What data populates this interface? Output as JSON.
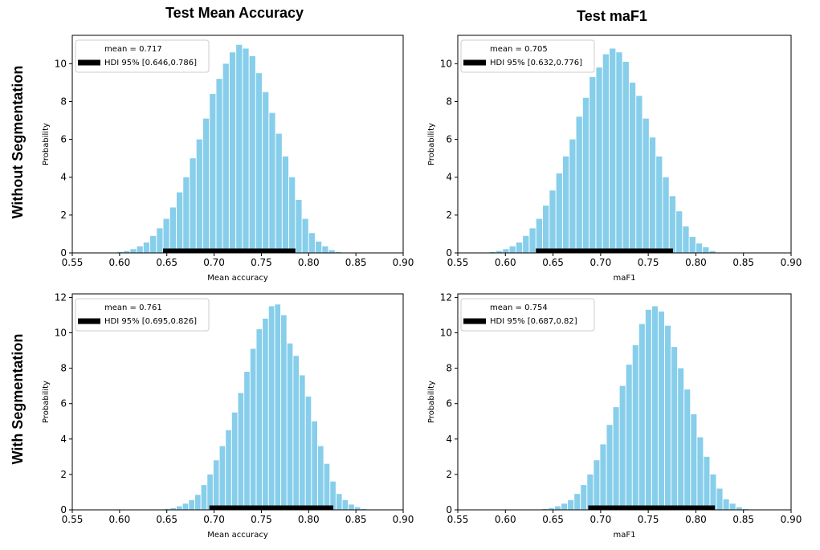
{
  "column_titles": [
    "Test Mean Accuracy",
    "Test maF1"
  ],
  "row_titles": [
    "Without Segmentation",
    "With Segmentation"
  ],
  "colors": {
    "bar": "#87ceeb",
    "hdi": "#000000",
    "axis": "#000000"
  },
  "chart_data": [
    {
      "type": "bar",
      "panel": "without-segmentation / test-mean-accuracy",
      "xlabel": "Mean accuracy",
      "ylabel": "Probability",
      "xlim": [
        0.55,
        0.9
      ],
      "ylim": [
        0,
        11.5
      ],
      "xticks": [
        "0.55",
        "0.60",
        "0.65",
        "0.70",
        "0.75",
        "0.80",
        "0.85",
        "0.90"
      ],
      "yticks": [
        "0",
        "2",
        "4",
        "6",
        "8",
        "10"
      ],
      "legend": {
        "placement": "top-left",
        "mean_label": "mean = 0.717",
        "hdi_label": "HDI 95% [0.646,0.786]"
      },
      "mean": 0.717,
      "hdi": [
        0.646,
        0.786
      ],
      "bin_width": 0.007,
      "bins": [
        0.597,
        0.604,
        0.611,
        0.618,
        0.625,
        0.632,
        0.639,
        0.646,
        0.653,
        0.66,
        0.667,
        0.674,
        0.681,
        0.688,
        0.695,
        0.702,
        0.709,
        0.716,
        0.723,
        0.73,
        0.737,
        0.744,
        0.751,
        0.758,
        0.765,
        0.772,
        0.779,
        0.786,
        0.793,
        0.8,
        0.807,
        0.814,
        0.821,
        0.828
      ],
      "values": [
        0.05,
        0.1,
        0.2,
        0.35,
        0.55,
        0.9,
        1.3,
        1.8,
        2.4,
        3.2,
        4.0,
        5.0,
        6.0,
        7.1,
        8.4,
        9.2,
        10.0,
        10.6,
        11.0,
        10.8,
        10.4,
        9.5,
        8.5,
        7.4,
        6.3,
        5.1,
        4.0,
        2.8,
        1.8,
        1.05,
        0.6,
        0.35,
        0.15,
        0.05
      ]
    },
    {
      "type": "bar",
      "panel": "without-segmentation / test-maf1",
      "xlabel": "maF1",
      "ylabel": "Probability",
      "xlim": [
        0.55,
        0.9
      ],
      "ylim": [
        0,
        11.5
      ],
      "xticks": [
        "0.55",
        "0.60",
        "0.65",
        "0.70",
        "0.75",
        "0.80",
        "0.85",
        "0.90"
      ],
      "yticks": [
        "0",
        "2",
        "4",
        "6",
        "8",
        "10"
      ],
      "legend": {
        "placement": "top-left",
        "mean_label": "mean = 0.705",
        "hdi_label": "HDI 95% [0.632,0.776]"
      },
      "mean": 0.705,
      "hdi": [
        0.632,
        0.776
      ],
      "bin_width": 0.007,
      "bins": [
        0.583,
        0.59,
        0.597,
        0.604,
        0.611,
        0.618,
        0.625,
        0.632,
        0.639,
        0.646,
        0.653,
        0.66,
        0.667,
        0.674,
        0.681,
        0.688,
        0.695,
        0.702,
        0.709,
        0.716,
        0.723,
        0.73,
        0.737,
        0.744,
        0.751,
        0.758,
        0.765,
        0.772,
        0.779,
        0.786,
        0.793,
        0.8,
        0.807,
        0.814
      ],
      "values": [
        0.05,
        0.1,
        0.2,
        0.35,
        0.55,
        0.9,
        1.3,
        1.8,
        2.5,
        3.3,
        4.2,
        5.1,
        6.0,
        7.2,
        8.2,
        9.3,
        9.8,
        10.5,
        10.8,
        10.6,
        10.1,
        9.0,
        8.3,
        7.1,
        6.1,
        5.1,
        4.0,
        3.0,
        2.2,
        1.4,
        0.85,
        0.5,
        0.3,
        0.1
      ]
    },
    {
      "type": "bar",
      "panel": "with-segmentation / test-mean-accuracy",
      "xlabel": "Mean accuracy",
      "ylabel": "Probability",
      "xlim": [
        0.55,
        0.9
      ],
      "ylim": [
        0,
        12.2
      ],
      "xticks": [
        "0.55",
        "0.60",
        "0.65",
        "0.70",
        "0.75",
        "0.80",
        "0.85",
        "0.90"
      ],
      "yticks": [
        "0",
        "2",
        "4",
        "6",
        "8",
        "10",
        "12"
      ],
      "legend": {
        "placement": "top-left",
        "mean_label": "mean = 0.761",
        "hdi_label": "HDI 95% [0.695,0.826]"
      },
      "mean": 0.761,
      "hdi": [
        0.695,
        0.826
      ],
      "bin_width": 0.0065,
      "bins": [
        0.647,
        0.6535,
        0.66,
        0.6665,
        0.673,
        0.6795,
        0.686,
        0.6925,
        0.699,
        0.7055,
        0.712,
        0.7185,
        0.725,
        0.7315,
        0.738,
        0.7445,
        0.751,
        0.7575,
        0.764,
        0.7705,
        0.777,
        0.7835,
        0.79,
        0.7965,
        0.803,
        0.8095,
        0.816,
        0.8225,
        0.829,
        0.8355,
        0.842,
        0.8485,
        0.855
      ],
      "values": [
        0.05,
        0.1,
        0.2,
        0.35,
        0.55,
        0.85,
        1.4,
        2.0,
        2.8,
        3.6,
        4.5,
        5.5,
        6.6,
        7.8,
        9.1,
        10.2,
        10.8,
        11.5,
        11.6,
        11.0,
        9.4,
        8.7,
        7.6,
        6.4,
        5.0,
        3.6,
        2.6,
        1.6,
        0.9,
        0.55,
        0.3,
        0.15,
        0.05
      ]
    },
    {
      "type": "bar",
      "panel": "with-segmentation / test-maf1",
      "xlabel": "maF1",
      "ylabel": "Probability",
      "xlim": [
        0.55,
        0.9
      ],
      "ylim": [
        0,
        12.2
      ],
      "xticks": [
        "0.55",
        "0.60",
        "0.65",
        "0.70",
        "0.75",
        "0.80",
        "0.85",
        "0.90"
      ],
      "yticks": [
        "0",
        "2",
        "4",
        "6",
        "8",
        "10",
        "12"
      ],
      "legend": {
        "placement": "top-left",
        "mean_label": "mean = 0.754",
        "hdi_label": "HDI 95% [0.687,0.82]"
      },
      "mean": 0.754,
      "hdi": [
        0.687,
        0.82
      ],
      "bin_width": 0.0068,
      "bins": [
        0.638,
        0.6448,
        0.6516,
        0.6584,
        0.6652,
        0.672,
        0.6788,
        0.6856,
        0.6924,
        0.6992,
        0.706,
        0.7128,
        0.7196,
        0.7264,
        0.7332,
        0.74,
        0.7468,
        0.7536,
        0.7604,
        0.7672,
        0.774,
        0.7808,
        0.7876,
        0.7944,
        0.8012,
        0.808,
        0.8148,
        0.8216,
        0.8284,
        0.8352,
        0.842,
        0.8488
      ],
      "values": [
        0.05,
        0.1,
        0.2,
        0.35,
        0.55,
        0.9,
        1.4,
        2.0,
        2.8,
        3.7,
        4.8,
        5.8,
        7.0,
        8.2,
        9.3,
        10.5,
        11.3,
        11.5,
        11.2,
        10.4,
        9.2,
        8.0,
        6.8,
        5.4,
        4.1,
        3.0,
        2.0,
        1.2,
        0.6,
        0.35,
        0.15,
        0.05
      ]
    }
  ]
}
